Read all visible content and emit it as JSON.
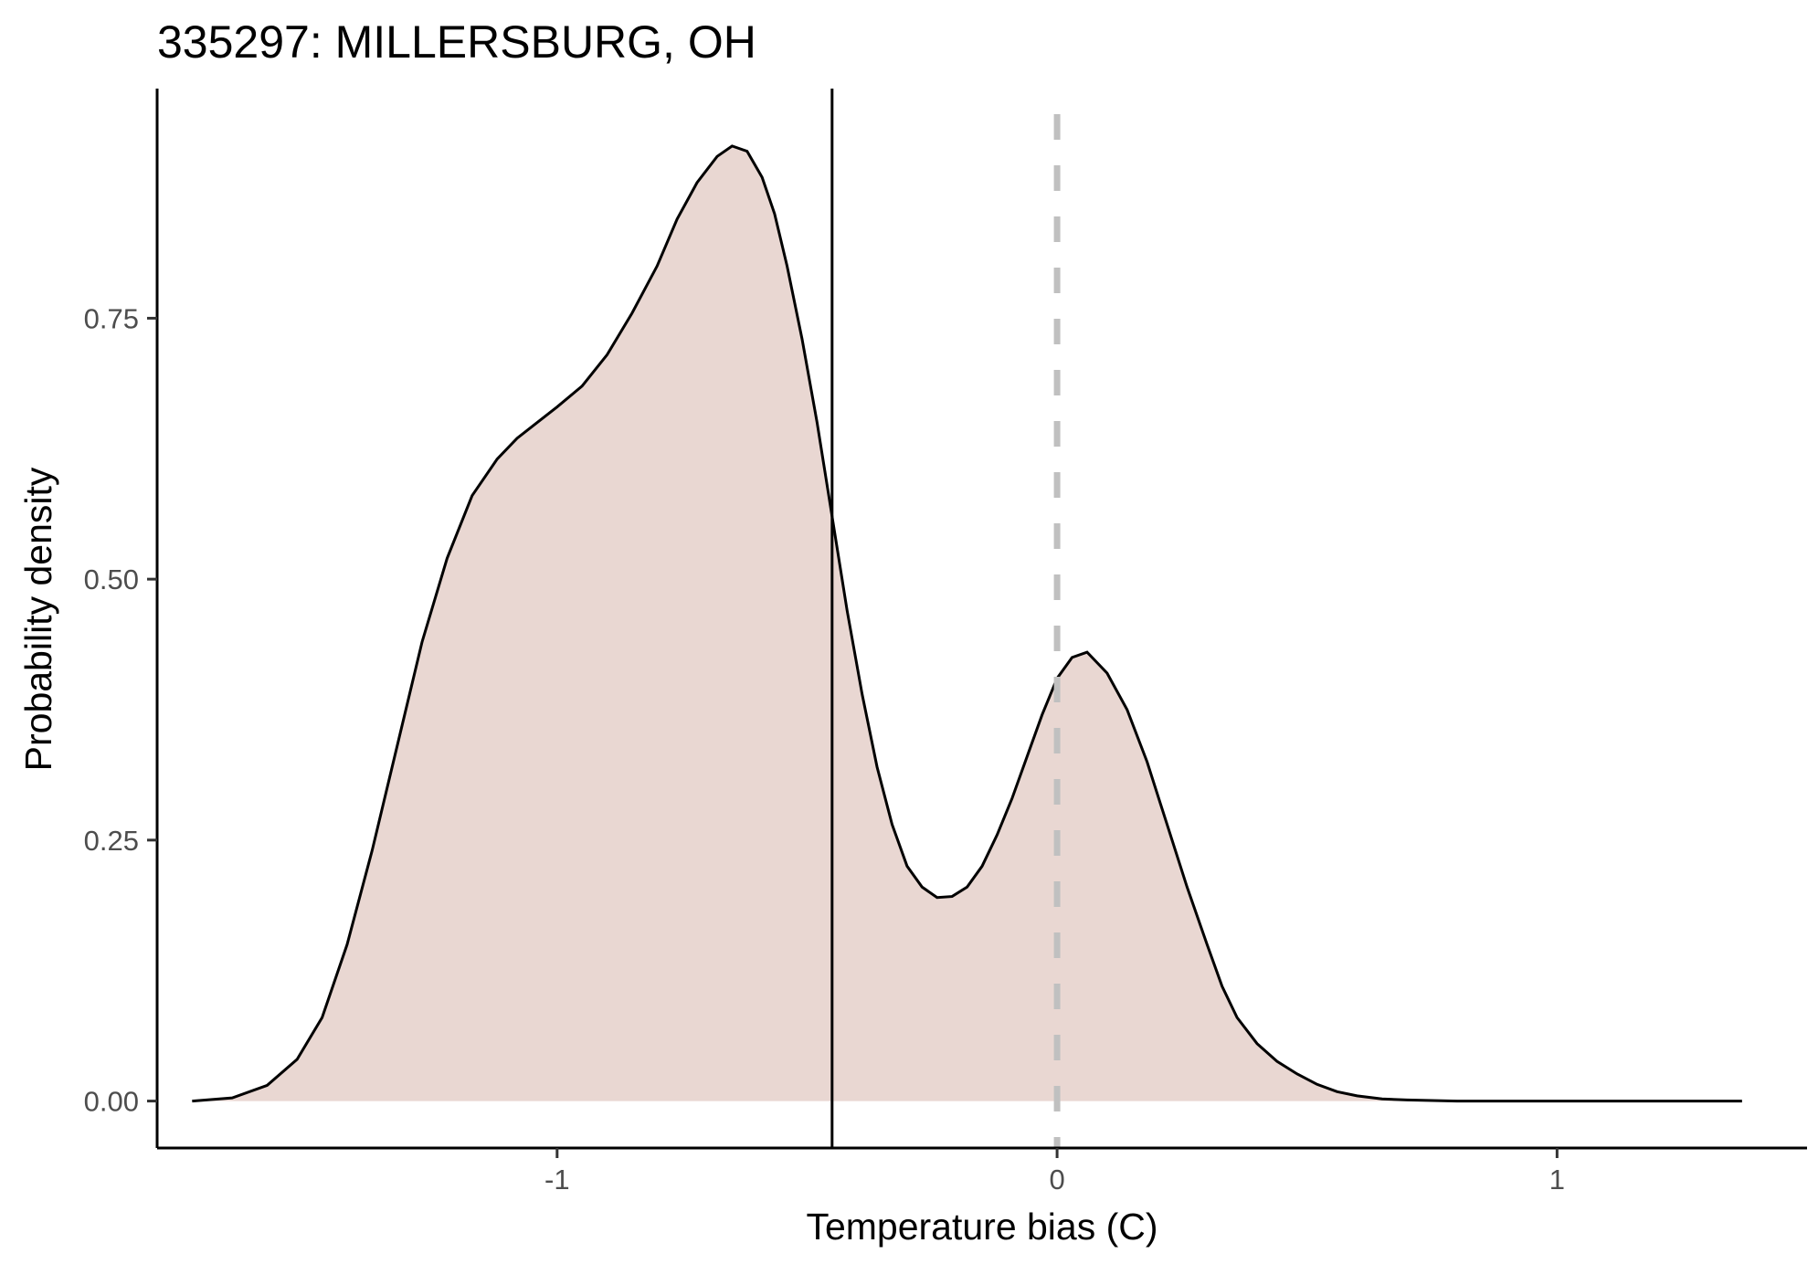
{
  "chart_data": {
    "type": "area",
    "title": "335297: MILLERSBURG, OH",
    "xlabel": "Temperature bias (C)",
    "ylabel": "Probability density",
    "xlim": [
      -1.8,
      1.5
    ],
    "ylim": [
      -0.045,
      0.97
    ],
    "x_ticks": [
      -1,
      0,
      1
    ],
    "x_tick_labels": [
      "-1",
      "0",
      "1"
    ],
    "y_ticks": [
      0,
      0.25,
      0.5,
      0.75
    ],
    "y_tick_labels": [
      "0.00",
      "0.25",
      "0.50",
      "0.75"
    ],
    "grid": false,
    "legend": "none",
    "density_curve": {
      "x": [
        -1.73,
        -1.65,
        -1.58,
        -1.52,
        -1.47,
        -1.42,
        -1.37,
        -1.32,
        -1.27,
        -1.22,
        -1.17,
        -1.12,
        -1.08,
        -1.04,
        -1.0,
        -0.95,
        -0.9,
        -0.85,
        -0.8,
        -0.76,
        -0.72,
        -0.68,
        -0.65,
        -0.62,
        -0.59,
        -0.565,
        -0.54,
        -0.51,
        -0.48,
        -0.45,
        -0.42,
        -0.39,
        -0.36,
        -0.33,
        -0.3,
        -0.27,
        -0.24,
        -0.21,
        -0.18,
        -0.15,
        -0.12,
        -0.09,
        -0.06,
        -0.03,
        0.0,
        0.03,
        0.06,
        0.1,
        0.14,
        0.18,
        0.22,
        0.26,
        0.3,
        0.33,
        0.36,
        0.4,
        0.44,
        0.48,
        0.52,
        0.56,
        0.6,
        0.65,
        0.7,
        0.75,
        0.8,
        0.85,
        0.9,
        0.95,
        1.0,
        1.05,
        1.1,
        1.15,
        1.2,
        1.25,
        1.3,
        1.37
      ],
      "y": [
        0.0,
        0.003,
        0.015,
        0.04,
        0.08,
        0.15,
        0.24,
        0.34,
        0.44,
        0.52,
        0.58,
        0.615,
        0.635,
        0.65,
        0.665,
        0.685,
        0.715,
        0.755,
        0.8,
        0.845,
        0.88,
        0.905,
        0.915,
        0.91,
        0.885,
        0.85,
        0.8,
        0.73,
        0.65,
        0.56,
        0.47,
        0.39,
        0.32,
        0.265,
        0.225,
        0.205,
        0.195,
        0.196,
        0.205,
        0.225,
        0.255,
        0.29,
        0.33,
        0.37,
        0.405,
        0.425,
        0.43,
        0.41,
        0.375,
        0.325,
        0.265,
        0.205,
        0.15,
        0.11,
        0.08,
        0.055,
        0.038,
        0.026,
        0.016,
        0.009,
        0.005,
        0.002,
        0.001,
        0.0005,
        0.0,
        0.0,
        0.0,
        0.0,
        0.0,
        0.0,
        0.0,
        0.0,
        0.0,
        0.0,
        0.0,
        0.0
      ],
      "fill_color": "#e9d7d2",
      "line_color": "#000000"
    },
    "vertical_lines": [
      {
        "x": -0.45,
        "style": "solid",
        "color": "#000000"
      },
      {
        "x": 0.0,
        "style": "dashed",
        "color": "#c0c0c0"
      }
    ]
  }
}
